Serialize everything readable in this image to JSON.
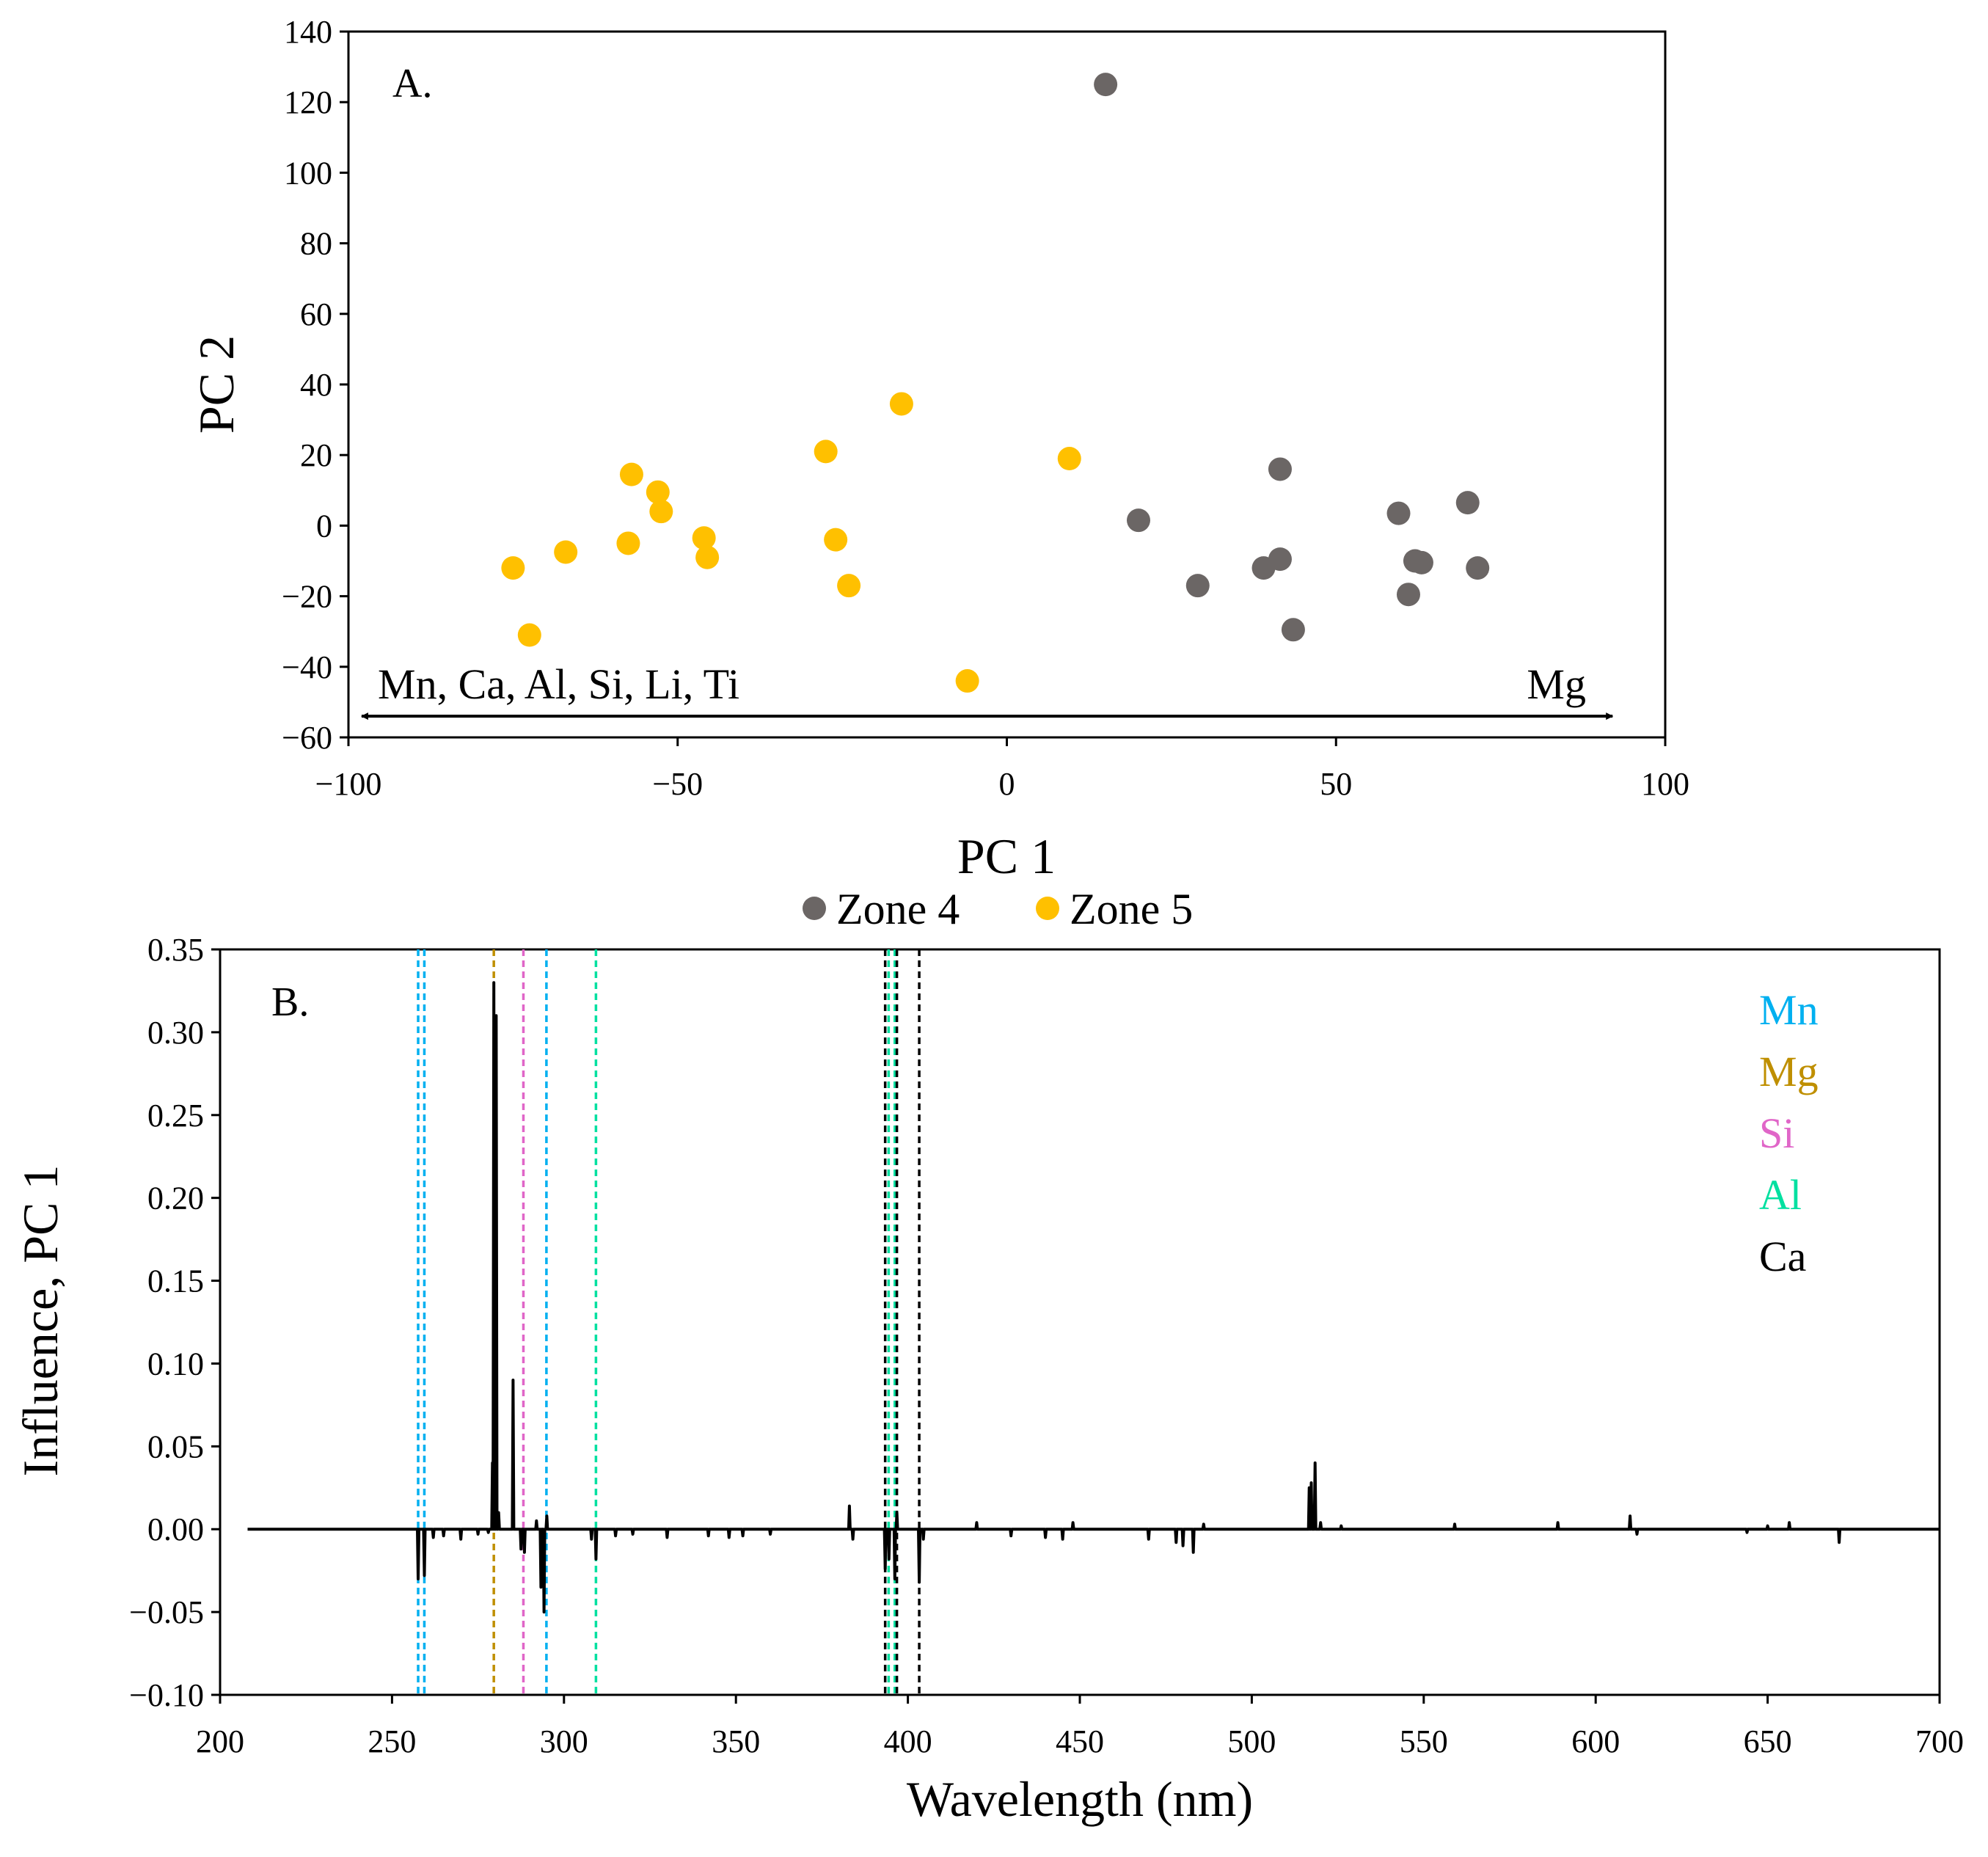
{
  "colors": {
    "zone4": "#6b6665",
    "zone5": "#ffc000",
    "Mn": "#00b0f0",
    "Mg": "#bf8f00",
    "Si": "#e066c8",
    "Al": "#00e0a0",
    "Ca": "#000000"
  },
  "chart_data": [
    {
      "type": "scatter",
      "panel_label": "A.",
      "xlabel": "PC 1",
      "ylabel": "PC 2",
      "xlim": [
        -100,
        100
      ],
      "ylim": [
        -60,
        140
      ],
      "xticks": [
        -100,
        -50,
        0,
        50,
        100
      ],
      "xtick_labels": [
        "−100",
        "−50",
        "0",
        "50",
        "100"
      ],
      "yticks": [
        -60,
        -40,
        -20,
        0,
        20,
        40,
        60,
        80,
        100,
        120,
        140
      ],
      "ytick_labels": [
        "−60",
        "−40",
        "−20",
        "0",
        "20",
        "40",
        "60",
        "80",
        "100",
        "120",
        "140"
      ],
      "legend": {
        "position": "bottom-center",
        "entries": [
          "Zone 4",
          "Zone 5"
        ]
      },
      "annotations": {
        "left": "Mn, Ca, Al, Si, Li, Ti",
        "right": "Mg",
        "arrow_range": [
          -98,
          92
        ],
        "arrow_y": -54
      },
      "series": [
        {
          "name": "Zone 4",
          "color_key": "zone4",
          "points": [
            [
              15,
              125
            ],
            [
              20,
              1.5
            ],
            [
              29,
              -17
            ],
            [
              39,
              -12
            ],
            [
              41.5,
              -9.5
            ],
            [
              41.5,
              16
            ],
            [
              43.5,
              -29.5
            ],
            [
              59.5,
              3.5
            ],
            [
              61,
              -19.5
            ],
            [
              62,
              -10
            ],
            [
              63,
              -10.5
            ],
            [
              70,
              6.5
            ],
            [
              71.5,
              -12
            ]
          ]
        },
        {
          "name": "Zone 5",
          "color_key": "zone5",
          "points": [
            [
              -75,
              -12
            ],
            [
              -72.5,
              -31
            ],
            [
              -67,
              -7.5
            ],
            [
              -57,
              14.5
            ],
            [
              -57.5,
              -5
            ],
            [
              -53,
              9.5
            ],
            [
              -52.5,
              4
            ],
            [
              -46,
              -3.5
            ],
            [
              -45.5,
              -9
            ],
            [
              -27.5,
              21
            ],
            [
              -26,
              -4
            ],
            [
              -24,
              -17
            ],
            [
              -16,
              34.5
            ],
            [
              9.5,
              19
            ],
            [
              -6,
              -44
            ]
          ]
        }
      ]
    },
    {
      "type": "line",
      "panel_label": "B.",
      "xlabel": "Wavelength (nm)",
      "ylabel": "Influence, PC 1",
      "xlim": [
        200,
        700
      ],
      "ylim": [
        -0.1,
        0.35
      ],
      "xticks": [
        200,
        250,
        300,
        350,
        400,
        450,
        500,
        550,
        600,
        650,
        700
      ],
      "xtick_labels": [
        "200",
        "250",
        "300",
        "350",
        "400",
        "450",
        "500",
        "550",
        "600",
        "650",
        "700"
      ],
      "yticks": [
        -0.1,
        -0.05,
        0,
        0.05,
        0.1,
        0.15,
        0.2,
        0.25,
        0.3,
        0.35
      ],
      "ytick_labels": [
        "−0.10",
        "−0.05",
        "0.00",
        "0.05",
        "0.10",
        "0.15",
        "0.20",
        "0.25",
        "0.30",
        "0.35"
      ],
      "legend": {
        "position": "top-right",
        "entries": [
          "Mn",
          "Mg",
          "Si",
          "Al",
          "Ca"
        ]
      },
      "element_lines": [
        {
          "element": "Mn",
          "wavelengths": [
            257.6,
            259.4,
            294.9
          ]
        },
        {
          "element": "Mg",
          "wavelengths": [
            279.6
          ]
        },
        {
          "element": "Si",
          "wavelengths": [
            288.2
          ]
        },
        {
          "element": "Al",
          "wavelengths": [
            309.3,
            394.4,
            396.2
          ]
        },
        {
          "element": "Ca",
          "wavelengths": [
            393.4,
            396.8,
            403.3
          ]
        }
      ],
      "series": [
        {
          "name": "Influence, PC 1",
          "range": [
            208,
            700
          ],
          "baseline": 0,
          "peaks": [
            [
              257.6,
              -0.03
            ],
            [
              259.4,
              -0.028
            ],
            [
              262,
              -0.005
            ],
            [
              265,
              -0.004
            ],
            [
              270,
              -0.006
            ],
            [
              275,
              -0.003
            ],
            [
              278,
              -0.002
            ],
            [
              279.2,
              0.04
            ],
            [
              279.6,
              0.33
            ],
            [
              280.3,
              0.31
            ],
            [
              281,
              0.01
            ],
            [
              285.2,
              0.09
            ],
            [
              287.5,
              -0.012
            ],
            [
              288.5,
              -0.014
            ],
            [
              292,
              0.005
            ],
            [
              293.3,
              -0.035
            ],
            [
              294.2,
              -0.05
            ],
            [
              295,
              0.008
            ],
            [
              308,
              -0.006
            ],
            [
              309.3,
              -0.018
            ],
            [
              315,
              -0.004
            ],
            [
              320,
              -0.003
            ],
            [
              330,
              -0.005
            ],
            [
              342,
              -0.004
            ],
            [
              348,
              -0.005
            ],
            [
              352,
              -0.004
            ],
            [
              360,
              -0.003
            ],
            [
              383,
              0.014
            ],
            [
              384,
              -0.006
            ],
            [
              393.4,
              -0.024
            ],
            [
              394.5,
              -0.018
            ],
            [
              396.2,
              -0.03
            ],
            [
              396.8,
              0.01
            ],
            [
              403.3,
              -0.032
            ],
            [
              404.5,
              -0.006
            ],
            [
              420,
              0.004
            ],
            [
              430,
              -0.004
            ],
            [
              440,
              -0.005
            ],
            [
              445,
              -0.006
            ],
            [
              448,
              0.004
            ],
            [
              470,
              -0.006
            ],
            [
              478,
              -0.008
            ],
            [
              480,
              -0.01
            ],
            [
              483,
              -0.014
            ],
            [
              486,
              0.003
            ],
            [
              516.7,
              0.025
            ],
            [
              517.3,
              0.028
            ],
            [
              518.4,
              0.04
            ],
            [
              520,
              0.004
            ],
            [
              526,
              0.002
            ],
            [
              559,
              0.003
            ],
            [
              589,
              0.004
            ],
            [
              610,
              0.008
            ],
            [
              612,
              -0.003
            ],
            [
              644,
              -0.002
            ],
            [
              650,
              0.002
            ],
            [
              656.3,
              0.004
            ],
            [
              670.8,
              -0.008
            ]
          ]
        }
      ]
    }
  ]
}
